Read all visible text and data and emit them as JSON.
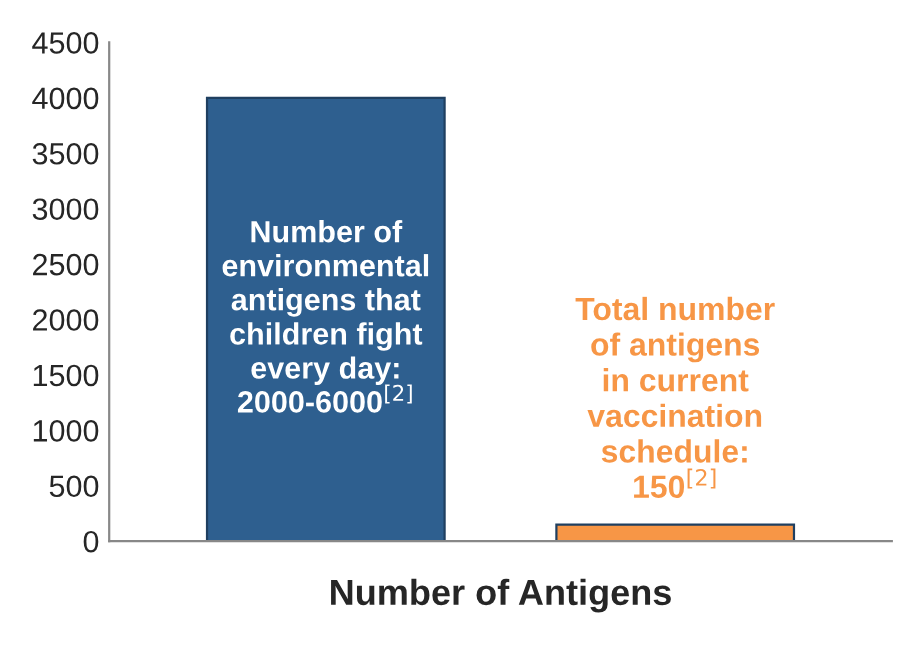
{
  "chart_data": {
    "type": "bar",
    "xlabel": "Number of Antigens",
    "categories": [
      null,
      null
    ],
    "values": [
      4000,
      150
    ],
    "colors": [
      "#2e5f8f",
      "#f79646"
    ],
    "ylim": [
      0,
      4500
    ],
    "yticks": [
      0,
      500,
      1000,
      1500,
      2000,
      2500,
      3000,
      3500,
      4000,
      4500
    ],
    "grid": false,
    "annotations": [
      "Number of\nenvironmental\nantigens that\nchildren fight\nevery day:\n2000-6000$^{[2]}$",
      "Total number\nof antigens\nin current\nvaccination\nschedule:\n150$^{[2]}$"
    ]
  }
}
